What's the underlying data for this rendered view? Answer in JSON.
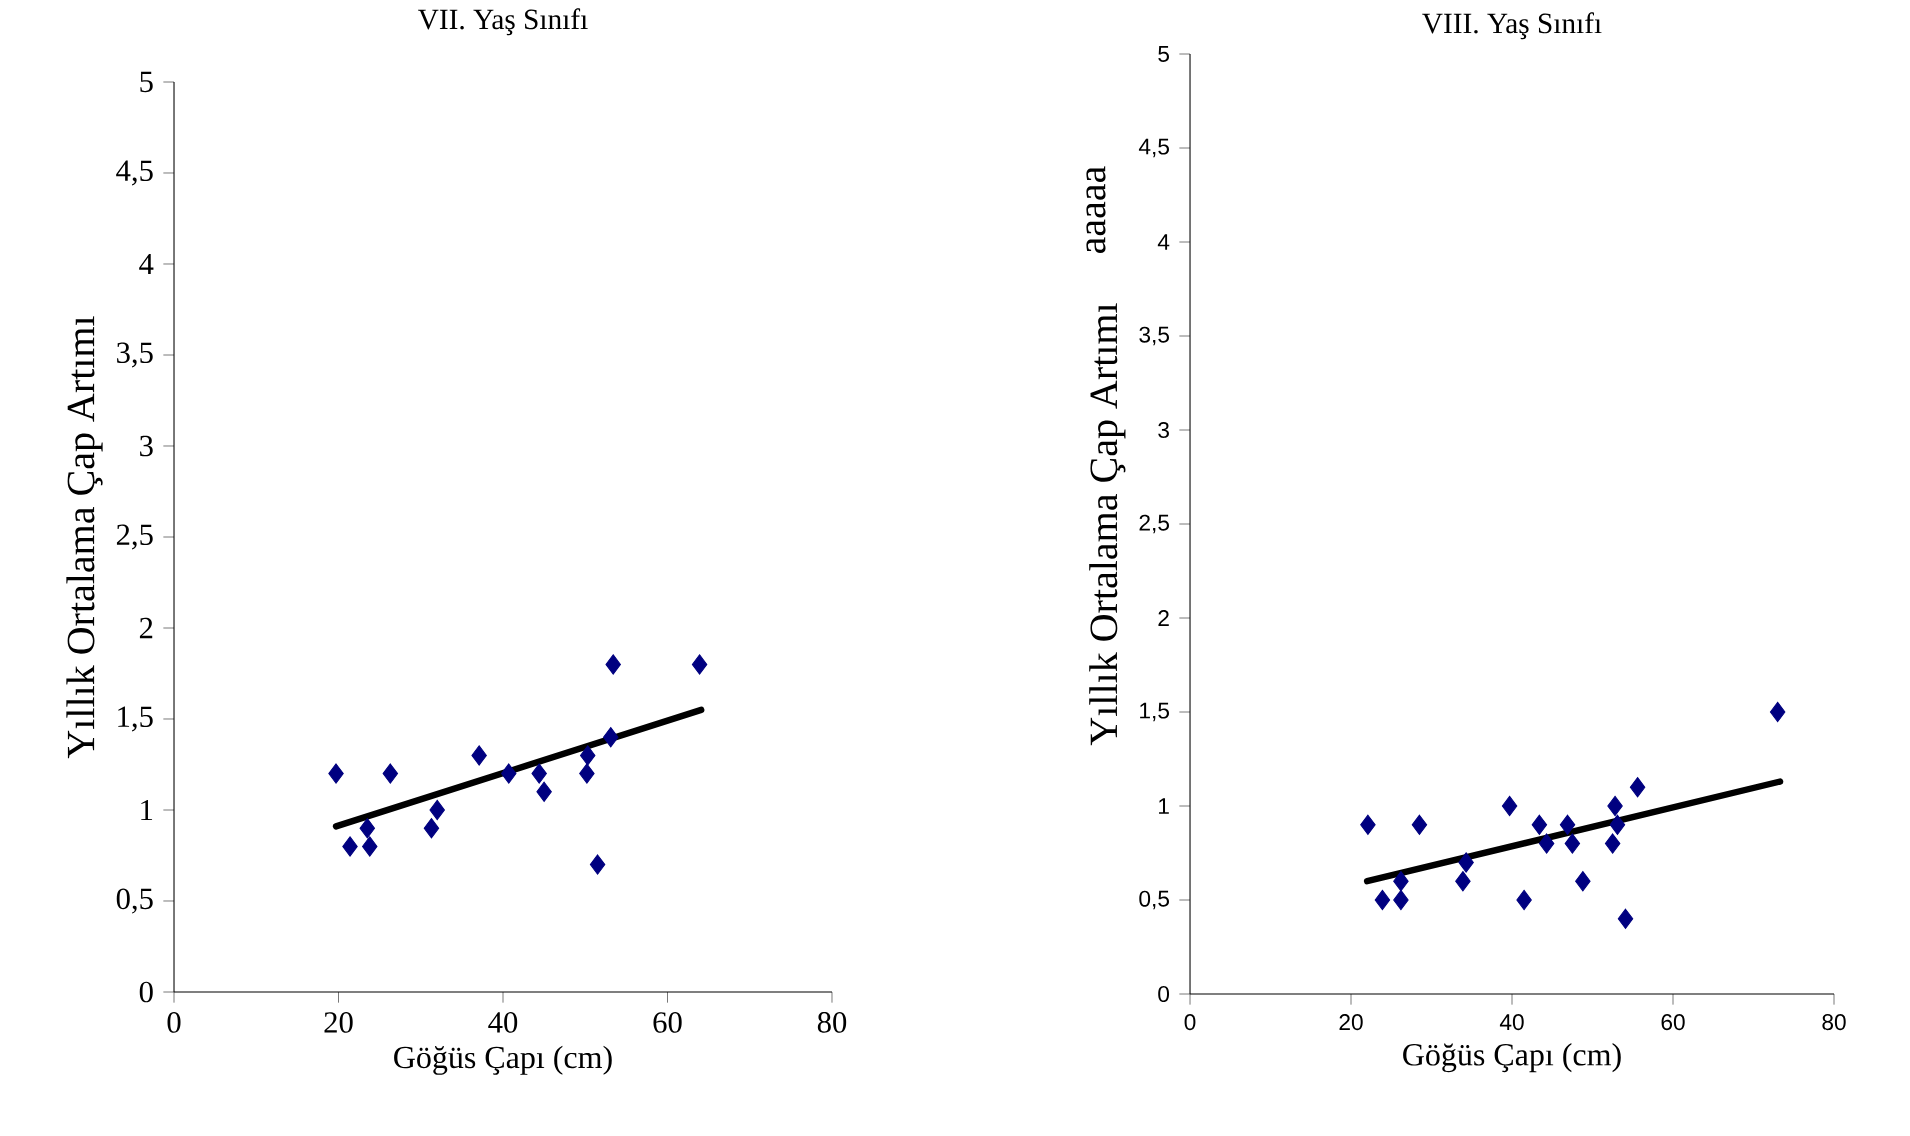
{
  "chart_data": [
    {
      "type": "scatter",
      "title": "VII. Yaş Sınıfı",
      "xlabel": "Göğüs Çapı (cm)",
      "ylabel": "Yıllık Ortalama Çap Artımı",
      "xlim": [
        0,
        80
      ],
      "ylim": [
        0,
        5
      ],
      "xticks": [
        0,
        20,
        40,
        60,
        80
      ],
      "yticks": [
        0,
        {
          "value": 0.5,
          "label": "0,5"
        },
        1,
        {
          "value": 1.5,
          "label": "1,5"
        },
        2,
        {
          "value": 2.5,
          "label": "2,5"
        },
        3,
        {
          "value": 3.5,
          "label": "3,5"
        },
        4,
        {
          "value": 4.5,
          "label": "4,5"
        },
        5
      ],
      "grid": false,
      "series": [
        {
          "marker": "diamond",
          "color": "#000080",
          "x": [
            19.7,
            21.4,
            23.5,
            23.8,
            26.3,
            31.3,
            32.0,
            37.1,
            40.7,
            44.4,
            45.0,
            50.3,
            50.2,
            53.1,
            53.4,
            51.5,
            63.9
          ],
          "values": [
            1.2,
            0.8,
            0.9,
            0.8,
            1.2,
            0.9,
            1.0,
            1.3,
            1.2,
            1.2,
            1.1,
            1.3,
            1.2,
            1.4,
            1.8,
            0.7,
            1.8
          ]
        },
        {
          "type": "line",
          "marker": "none",
          "color": "#000000",
          "x": [
            19.7,
            64.1
          ],
          "values": [
            0.91,
            1.55
          ]
        }
      ]
    },
    {
      "type": "scatter",
      "title": "VIII. Yaş Sınıfı",
      "xlabel": "Göğüs Çapı (cm)",
      "ylabel": "Yıllık Ortalama Çap Artımı",
      "annotations": [
        "aaaaa"
      ],
      "xlim": [
        0,
        80
      ],
      "ylim": [
        0,
        5
      ],
      "xticks": [
        0,
        20,
        40,
        60,
        80
      ],
      "yticks": [
        0,
        {
          "value": 0.5,
          "label": "0,5"
        },
        1,
        {
          "value": 1.5,
          "label": "1,5"
        },
        2,
        {
          "value": 2.5,
          "label": "2,5"
        },
        3,
        {
          "value": 3.5,
          "label": "3,5"
        },
        4,
        {
          "value": 4.5,
          "label": "4,5"
        },
        5
      ],
      "grid": false,
      "series": [
        {
          "marker": "diamond",
          "color": "#000080",
          "x": [
            22.1,
            23.9,
            26.2,
            26.2,
            28.5,
            33.9,
            34.3,
            39.7,
            41.5,
            43.4,
            44.3,
            46.9,
            47.5,
            48.8,
            52.5,
            52.8,
            53.1,
            54.1,
            55.6,
            73.0
          ],
          "values": [
            0.9,
            0.5,
            0.6,
            0.5,
            0.9,
            0.6,
            0.7,
            1.0,
            0.5,
            0.9,
            0.8,
            0.9,
            0.8,
            0.6,
            0.8,
            1.0,
            0.9,
            0.4,
            1.1,
            1.5
          ]
        },
        {
          "type": "line",
          "marker": "none",
          "color": "#000000",
          "x": [
            22.0,
            73.3
          ],
          "values": [
            0.6,
            1.13
          ]
        }
      ]
    }
  ]
}
